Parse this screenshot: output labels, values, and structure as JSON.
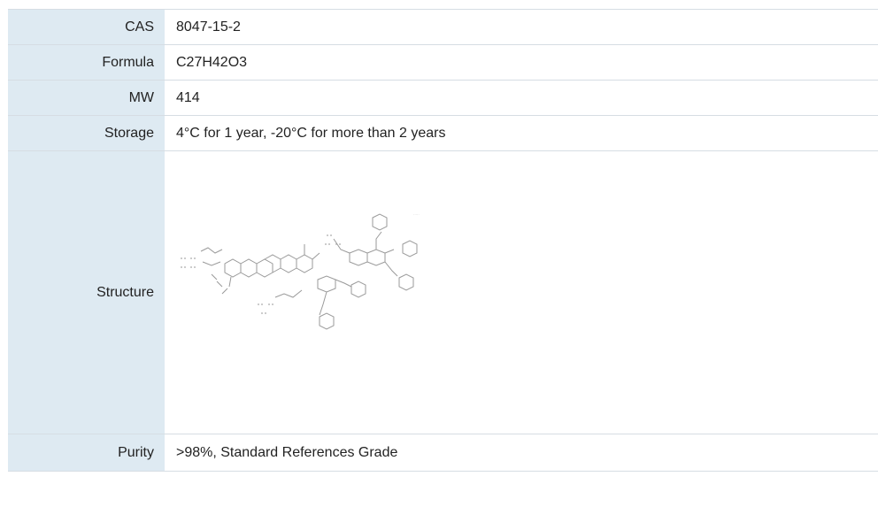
{
  "rows": [
    {
      "label": "CAS",
      "value": "8047-15-2"
    },
    {
      "label": "Formula",
      "value": "C27H42O3"
    },
    {
      "label": "MW",
      "value": "414"
    },
    {
      "label": "Storage",
      "value": "4°C for 1 year, -20°C for more than 2 years"
    },
    {
      "label": "Structure"
    },
    {
      "label": "Purity",
      "value": ">98%, Standard References Grade"
    }
  ],
  "colors": {
    "label_background": "#deeaf2",
    "border": "#d6dde3",
    "text": "#222222"
  }
}
